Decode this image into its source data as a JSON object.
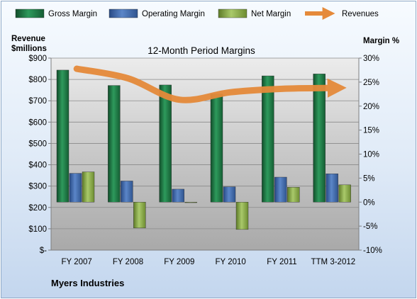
{
  "chart_data": {
    "type": "bar",
    "title": "12-Month Period Margins",
    "company": "Myers Industries",
    "left_axis_label": [
      "Revenue",
      "$millions"
    ],
    "right_axis_label": "Margin %",
    "left_ticks": [
      "$-",
      "$100",
      "$200",
      "$300",
      "$400",
      "$500",
      "$600",
      "$700",
      "$800",
      "$900"
    ],
    "right_ticks": [
      "-10%",
      "-5%",
      "0%",
      "5%",
      "10%",
      "15%",
      "20%",
      "25%",
      "30%"
    ],
    "ylim_left": [
      0,
      900
    ],
    "ylim_right": [
      -10,
      30
    ],
    "categories": [
      "FY 2007",
      "FY 2008",
      "FY 2009",
      "FY 2010",
      "FY 2011",
      "TTM 3-2012"
    ],
    "series": [
      {
        "name": "Gross Margin",
        "axis": "right",
        "color": "#1e7a45",
        "values": [
          27.5,
          24.3,
          24.4,
          22.5,
          26.3,
          26.7
        ]
      },
      {
        "name": "Operating Margin",
        "axis": "right",
        "color": "#3f66a8",
        "values": [
          6.0,
          4.4,
          2.7,
          3.2,
          5.2,
          5.9
        ]
      },
      {
        "name": "Net Margin",
        "axis": "right",
        "color": "#8fb04d",
        "values": [
          6.3,
          -5.4,
          -0.1,
          -5.7,
          3.1,
          3.6
        ]
      },
      {
        "name": "Revenues",
        "axis": "left",
        "type": "line",
        "color": "#e58a3a",
        "values": [
          850,
          805,
          705,
          740,
          756,
          760
        ]
      }
    ],
    "grid": true,
    "legend": "top"
  }
}
